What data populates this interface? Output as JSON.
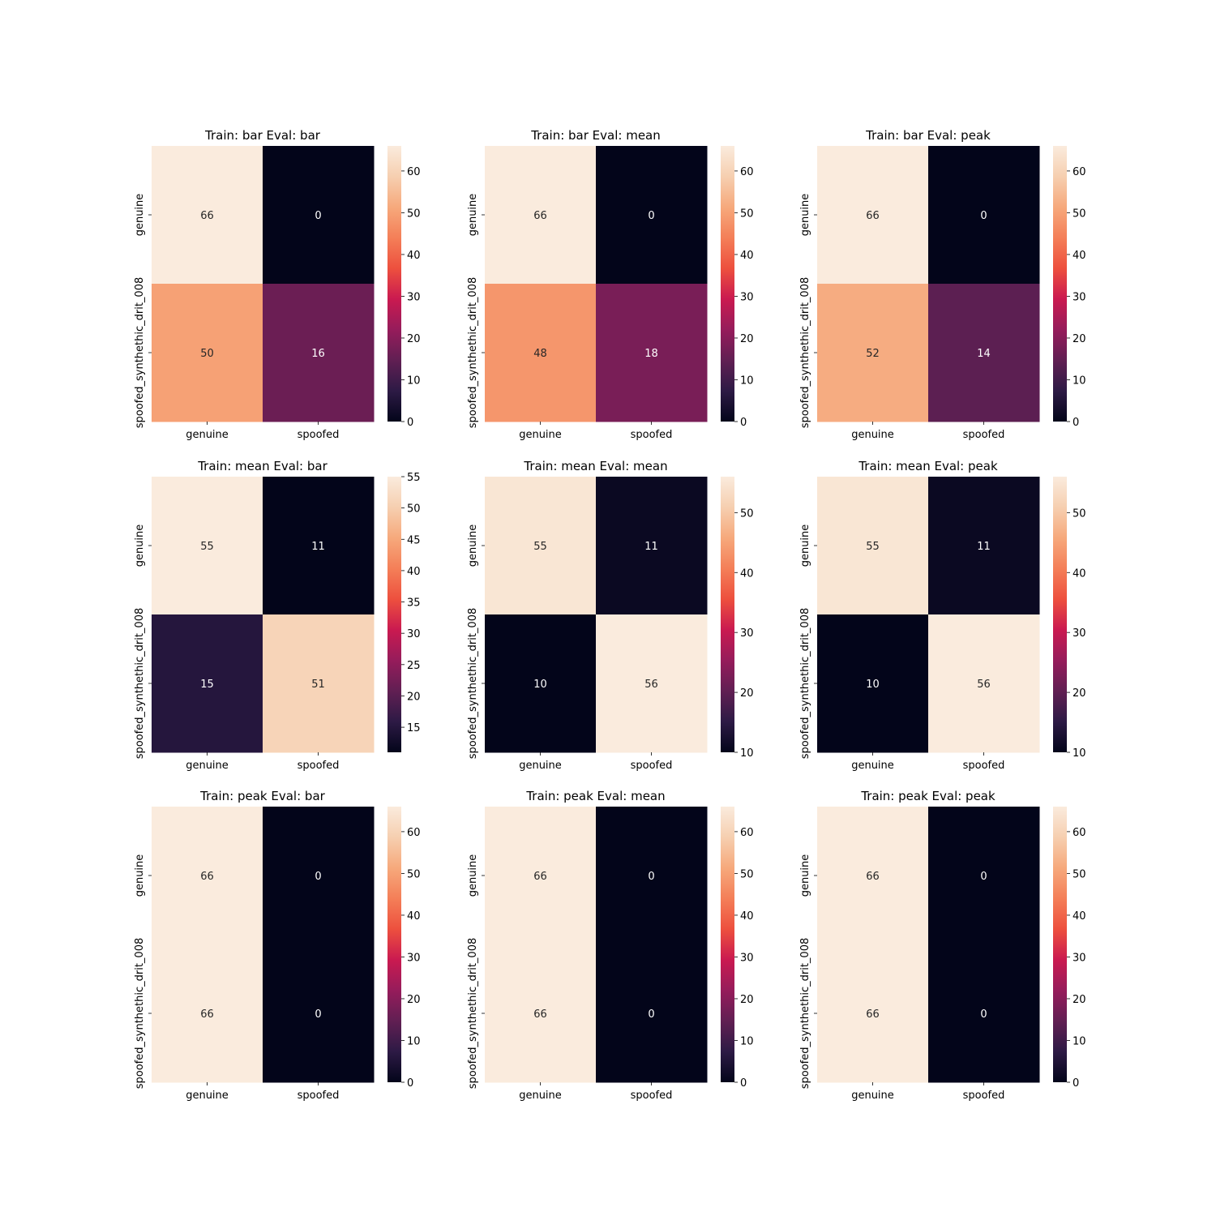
{
  "chart_data": [
    {
      "type": "heatmap",
      "title": "Train: bar Eval: bar",
      "x_tick_labels": [
        "genuine",
        "spoofed"
      ],
      "y_tick_labels": [
        "genuine",
        "spoofed_synthethic_drit_008"
      ],
      "values": [
        [
          66,
          0
        ],
        [
          50,
          16
        ]
      ],
      "colorbar": {
        "range": [
          0,
          66
        ],
        "ticks": [
          0,
          10,
          20,
          30,
          40,
          50,
          60
        ]
      }
    },
    {
      "type": "heatmap",
      "title": "Train: bar Eval: mean",
      "x_tick_labels": [
        "genuine",
        "spoofed"
      ],
      "y_tick_labels": [
        "genuine",
        "spoofed_synthethic_drit_008"
      ],
      "values": [
        [
          66,
          0
        ],
        [
          48,
          18
        ]
      ],
      "colorbar": {
        "range": [
          0,
          66
        ],
        "ticks": [
          0,
          10,
          20,
          30,
          40,
          50,
          60
        ]
      }
    },
    {
      "type": "heatmap",
      "title": "Train: bar Eval: peak",
      "x_tick_labels": [
        "genuine",
        "spoofed"
      ],
      "y_tick_labels": [
        "genuine",
        "spoofed_synthethic_drit_008"
      ],
      "values": [
        [
          66,
          0
        ],
        [
          52,
          14
        ]
      ],
      "colorbar": {
        "range": [
          0,
          66
        ],
        "ticks": [
          0,
          10,
          20,
          30,
          40,
          50,
          60
        ]
      }
    },
    {
      "type": "heatmap",
      "title": "Train: mean Eval: bar",
      "x_tick_labels": [
        "genuine",
        "spoofed"
      ],
      "y_tick_labels": [
        "genuine",
        "spoofed_synthethic_drit_008"
      ],
      "values": [
        [
          55,
          11
        ],
        [
          15,
          51
        ]
      ],
      "colorbar": {
        "range": [
          11,
          55
        ],
        "ticks": [
          15,
          20,
          25,
          30,
          35,
          40,
          45,
          50,
          55
        ]
      }
    },
    {
      "type": "heatmap",
      "title": "Train: mean Eval: mean",
      "x_tick_labels": [
        "genuine",
        "spoofed"
      ],
      "y_tick_labels": [
        "genuine",
        "spoofed_synthethic_drit_008"
      ],
      "values": [
        [
          55,
          11
        ],
        [
          10,
          56
        ]
      ],
      "colorbar": {
        "range": [
          10,
          56
        ],
        "ticks": [
          10,
          20,
          30,
          40,
          50
        ]
      }
    },
    {
      "type": "heatmap",
      "title": "Train: mean Eval: peak",
      "x_tick_labels": [
        "genuine",
        "spoofed"
      ],
      "y_tick_labels": [
        "genuine",
        "spoofed_synthethic_drit_008"
      ],
      "values": [
        [
          55,
          11
        ],
        [
          10,
          56
        ]
      ],
      "colorbar": {
        "range": [
          10,
          56
        ],
        "ticks": [
          10,
          20,
          30,
          40,
          50
        ]
      }
    },
    {
      "type": "heatmap",
      "title": "Train: peak Eval: bar",
      "x_tick_labels": [
        "genuine",
        "spoofed"
      ],
      "y_tick_labels": [
        "genuine",
        "spoofed_synthethic_drit_008"
      ],
      "values": [
        [
          66,
          0
        ],
        [
          66,
          0
        ]
      ],
      "colorbar": {
        "range": [
          0,
          66
        ],
        "ticks": [
          0,
          10,
          20,
          30,
          40,
          50,
          60
        ]
      }
    },
    {
      "type": "heatmap",
      "title": "Train: peak Eval: mean",
      "x_tick_labels": [
        "genuine",
        "spoofed"
      ],
      "y_tick_labels": [
        "genuine",
        "spoofed_synthethic_drit_008"
      ],
      "values": [
        [
          66,
          0
        ],
        [
          66,
          0
        ]
      ],
      "colorbar": {
        "range": [
          0,
          66
        ],
        "ticks": [
          0,
          10,
          20,
          30,
          40,
          50,
          60
        ]
      }
    },
    {
      "type": "heatmap",
      "title": "Train: peak Eval: peak",
      "x_tick_labels": [
        "genuine",
        "spoofed"
      ],
      "y_tick_labels": [
        "genuine",
        "spoofed_synthethic_drit_008"
      ],
      "values": [
        [
          66,
          0
        ],
        [
          66,
          0
        ]
      ],
      "colorbar": {
        "range": [
          0,
          66
        ],
        "ticks": [
          0,
          10,
          20,
          30,
          40,
          50,
          60
        ]
      }
    }
  ],
  "colormap": {
    "name": "rocket",
    "stops": [
      "#03051a",
      "#2d1a45",
      "#611f53",
      "#961c5b",
      "#ca1a50",
      "#ed503e",
      "#f47f58",
      "#f6a97c",
      "#f6cfb0",
      "#faebdd"
    ]
  }
}
